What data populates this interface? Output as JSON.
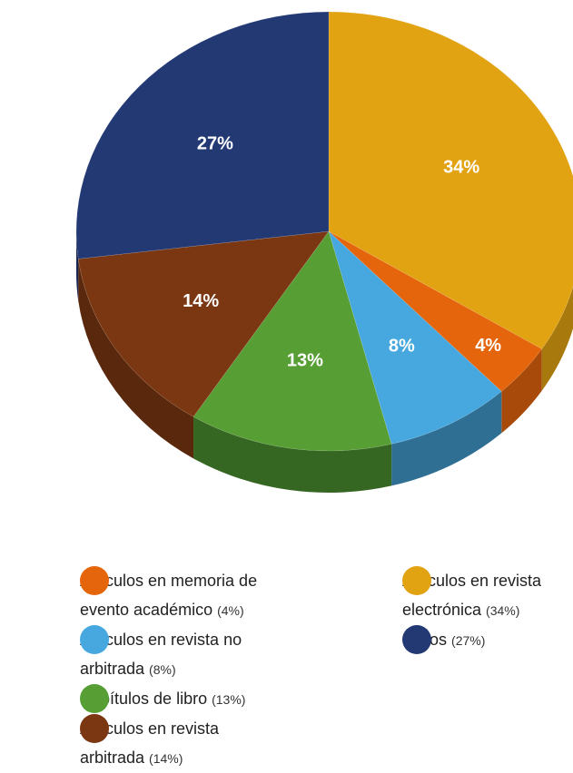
{
  "chart_data": {
    "type": "pie",
    "categories": [
      "Artículos en revista electrónica",
      "Artículos en memoria de evento académico",
      "Artículos en revista no arbitrada",
      "Capítulos de libro",
      "Artículos en revista arbitrada",
      "Libros"
    ],
    "values": [
      34,
      4,
      8,
      13,
      14,
      27
    ],
    "value_labels": [
      "34%",
      "4%",
      "8%",
      "13%",
      "14%",
      "27%"
    ],
    "legend_value_labels": [
      "(34%)",
      "(4%)",
      "(8%)",
      "(13%)",
      "(14%)",
      "(27%)"
    ],
    "colors": [
      "#e2a313",
      "#e4650c",
      "#47a8e0",
      "#579e35",
      "#7b3712",
      "#233974"
    ],
    "side_colors": [
      "#a87a0e",
      "#a84a09",
      "#2f6f93",
      "#366722",
      "#5a280d",
      "#172650"
    ]
  }
}
